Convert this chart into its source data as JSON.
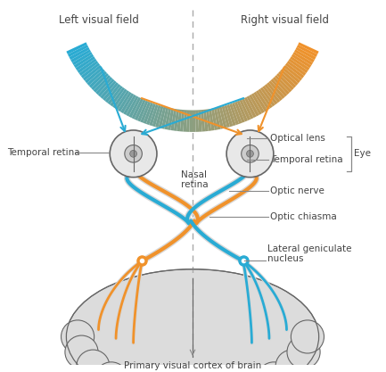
{
  "bg_color": "#ffffff",
  "cyan_color": "#29ABD4",
  "orange_color": "#F0922B",
  "gray_color": "#DCDCDC",
  "dark_gray": "#888888",
  "outline_color": "#666666",
  "text_color": "#444444",
  "labels": {
    "left_visual_field": "Left visual field",
    "right_visual_field": "Right visual field",
    "temporal_retina_left": "Temporal retina",
    "temporal_retina_right": "Temporal retina",
    "nasal_retina": "Nasal\nretina",
    "optical_lens": "Optical lens",
    "eye": "Eye",
    "optic_nerve": "Optic nerve",
    "optic_chiasma": "Optic chiasma",
    "lateral_geniculate": "Lateral geniculate\nnucleus",
    "primary_visual_cortex": "Primary visual cortex of brain"
  }
}
